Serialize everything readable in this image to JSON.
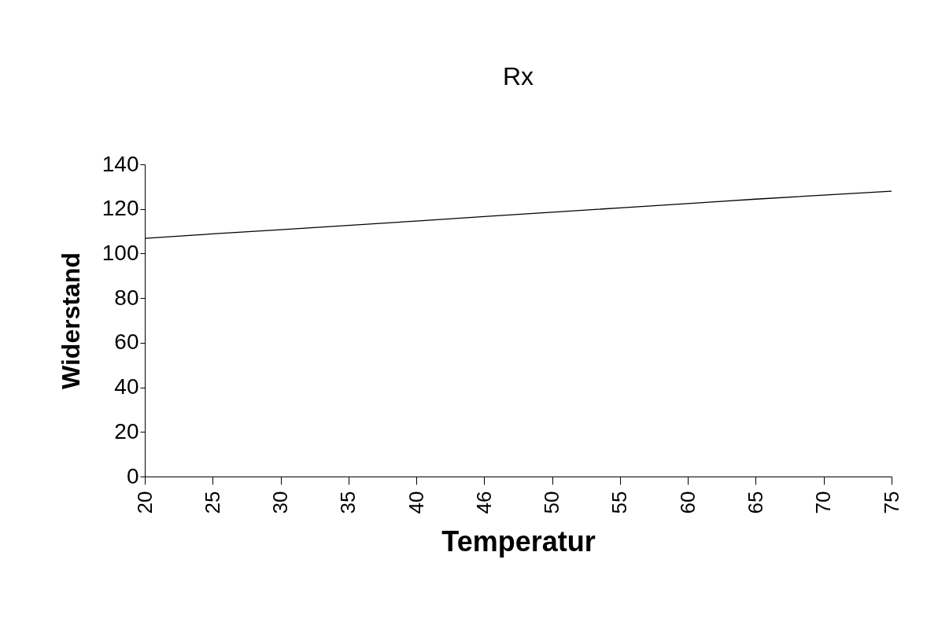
{
  "chart_data": {
    "type": "line",
    "title": "Rx",
    "xlabel": "Temperatur",
    "ylabel": "Widerstand",
    "categories": [
      "20",
      "25",
      "30",
      "35",
      "40",
      "46",
      "50",
      "55",
      "60",
      "65",
      "70",
      "75"
    ],
    "series": [
      {
        "color": "#000000",
        "values": [
          106.8,
          108.8,
          110.7,
          112.6,
          114.6,
          116.6,
          118.5,
          120.5,
          122.4,
          124.4,
          126.2,
          128.0
        ]
      }
    ],
    "ylim": [
      0,
      140
    ],
    "yticks": [
      0,
      20,
      40,
      60,
      80,
      100,
      120,
      140
    ],
    "grid": false,
    "marker": "none",
    "line_style": "solid"
  }
}
